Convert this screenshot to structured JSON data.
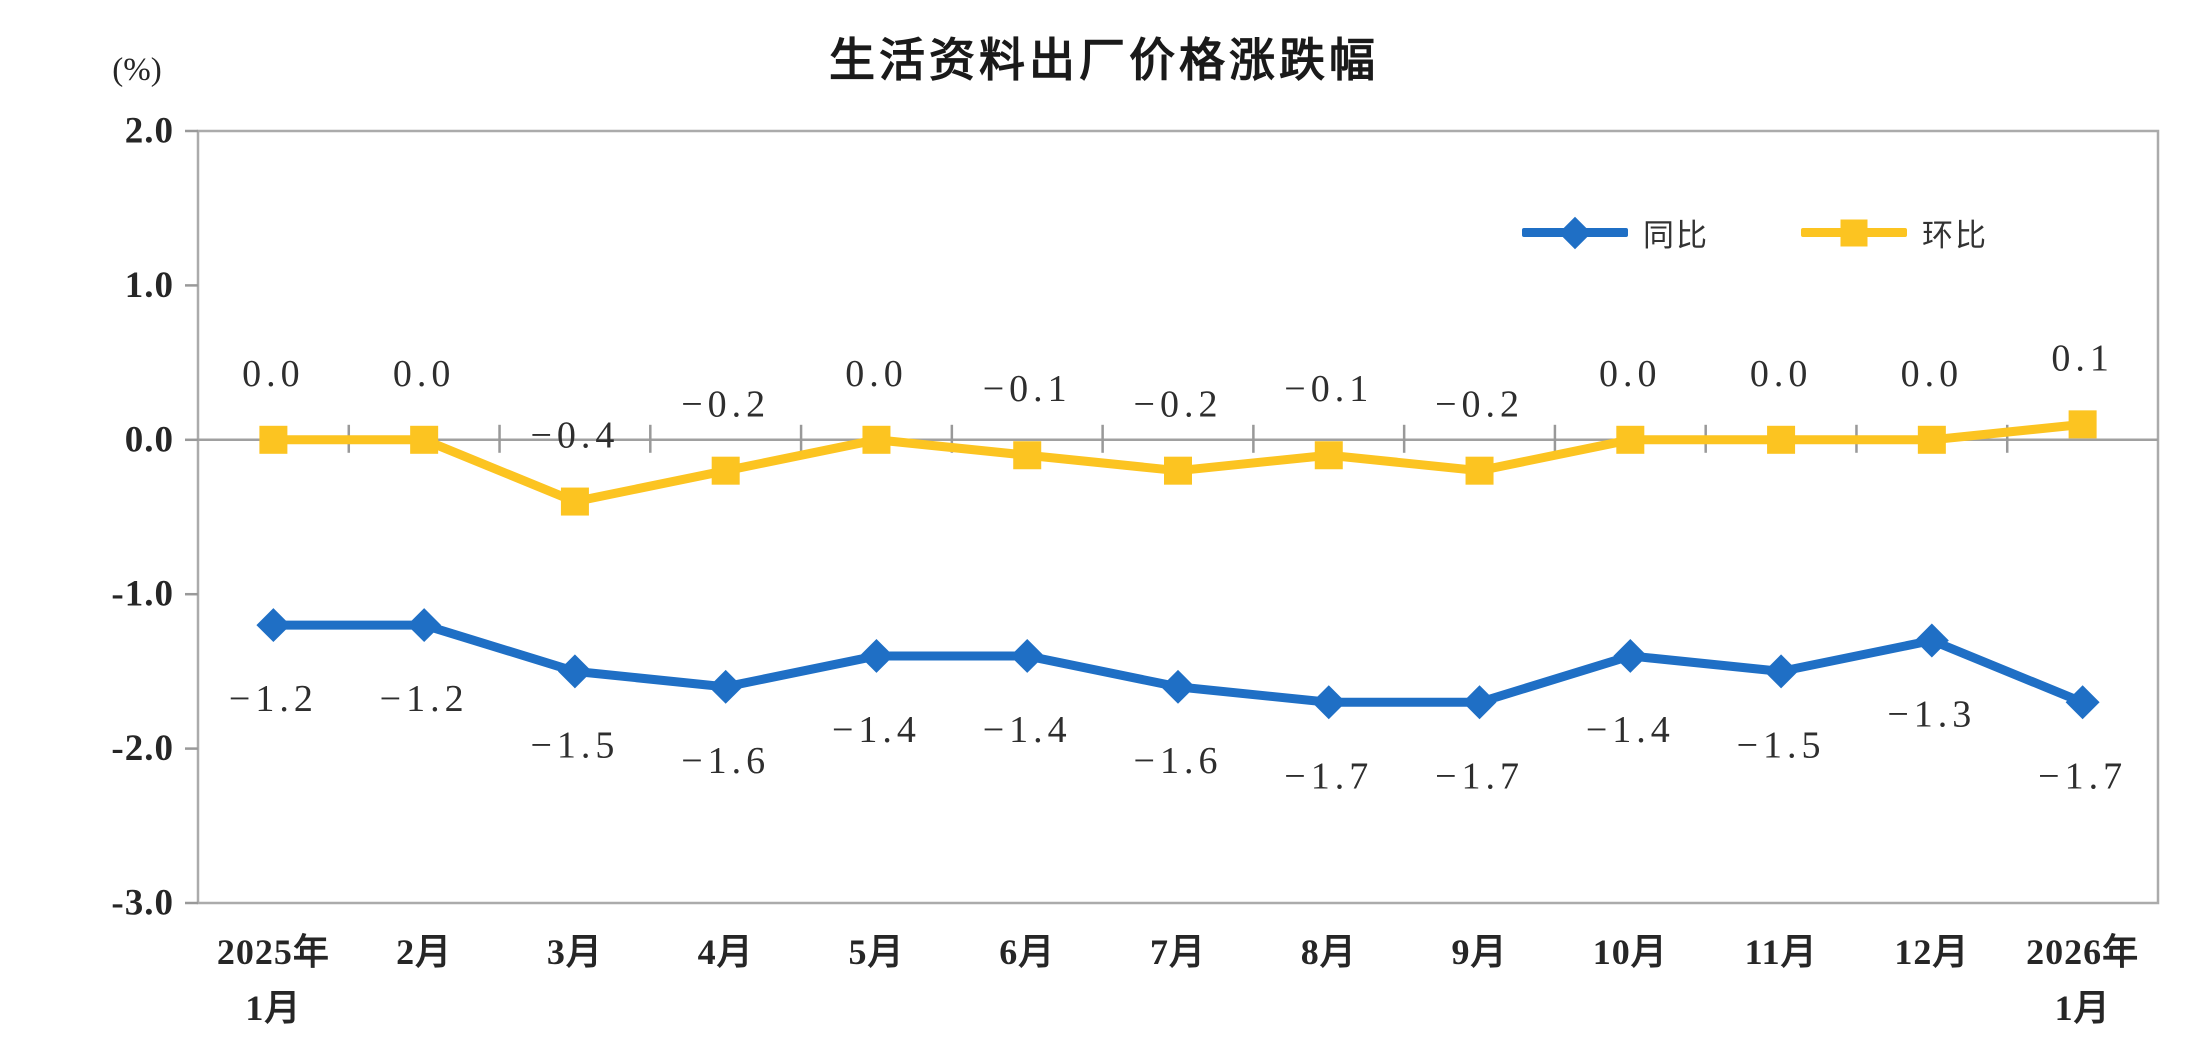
{
  "title": "生活资料出厂价格涨跌幅",
  "y_axis_unit": "(%)",
  "legend": {
    "items": [
      {
        "label": "同比",
        "marker": "diamond",
        "color": "#1F6FC5"
      },
      {
        "label": "环比",
        "marker": "square",
        "color": "#FCC421"
      }
    ]
  },
  "colors": {
    "yoy_blue": "#1F6FC5",
    "mom_gold": "#FCC421",
    "plot_border": "#ABABAB",
    "zero_line": "#A0A0A0",
    "tick": "#999999",
    "axis_text": "#262626",
    "data_label_text": "#2E2E2E"
  },
  "chart_data": {
    "type": "line",
    "title": "生活资料出厂价格涨跌幅",
    "ylabel": "(%)",
    "xlabel": "",
    "ylim": [
      -3.0,
      2.0
    ],
    "y_ticks": [
      2.0,
      1.0,
      0.0,
      -1.0,
      -2.0,
      -3.0
    ],
    "grid": false,
    "legend_position": "top-right",
    "categories": [
      "2025年1月",
      "2月",
      "3月",
      "4月",
      "5月",
      "6月",
      "7月",
      "8月",
      "9月",
      "10月",
      "11月",
      "12月",
      "2026年1月"
    ],
    "categories_display": [
      [
        "2025年",
        "1月"
      ],
      [
        "2月"
      ],
      [
        "3月"
      ],
      [
        "4月"
      ],
      [
        "5月"
      ],
      [
        "6月"
      ],
      [
        "7月"
      ],
      [
        "8月"
      ],
      [
        "9月"
      ],
      [
        "10月"
      ],
      [
        "11月"
      ],
      [
        "12月"
      ],
      [
        "2026年",
        "1月"
      ]
    ],
    "series": [
      {
        "name": "同比",
        "color": "#1F6FC5",
        "marker": "diamond",
        "label_position": "below",
        "values": [
          -1.2,
          -1.2,
          -1.5,
          -1.6,
          -1.4,
          -1.4,
          -1.6,
          -1.7,
          -1.7,
          -1.4,
          -1.5,
          -1.3,
          -1.7
        ]
      },
      {
        "name": "环比",
        "color": "#FCC421",
        "marker": "square",
        "label_position": "above",
        "values": [
          0.0,
          0.0,
          -0.4,
          -0.2,
          0.0,
          -0.1,
          -0.2,
          -0.1,
          -0.2,
          0.0,
          0.0,
          0.0,
          0.1
        ]
      }
    ]
  }
}
